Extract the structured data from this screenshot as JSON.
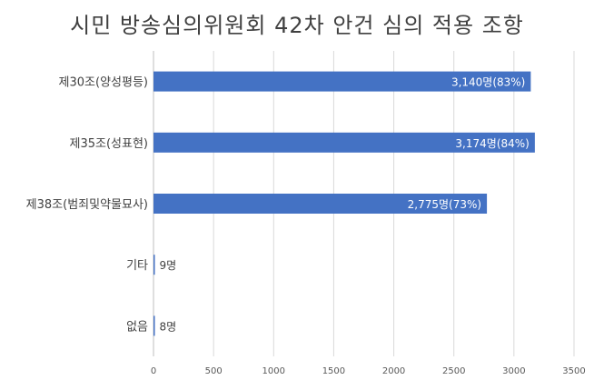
{
  "chart_data": {
    "type": "bar",
    "orientation": "horizontal",
    "title": "시민 방송심의위원회 42차 안건 심의 적용 조항",
    "categories": [
      "제30조(양성평등)",
      "제35조(성표현)",
      "제38조(범죄및약물묘사)",
      "기타",
      "없음"
    ],
    "values": [
      3140,
      3174,
      2775,
      9,
      8
    ],
    "data_labels": [
      "3,140명(83%)",
      "3,174명(84%)",
      "2,775명(73%)",
      "9명",
      "8명"
    ],
    "xlim": [
      0,
      3500
    ],
    "xticks": [
      "0",
      "500",
      "1000",
      "1500",
      "2000",
      "2500",
      "3000",
      "3500"
    ],
    "grid": true,
    "bar_color": "#4472c4"
  }
}
